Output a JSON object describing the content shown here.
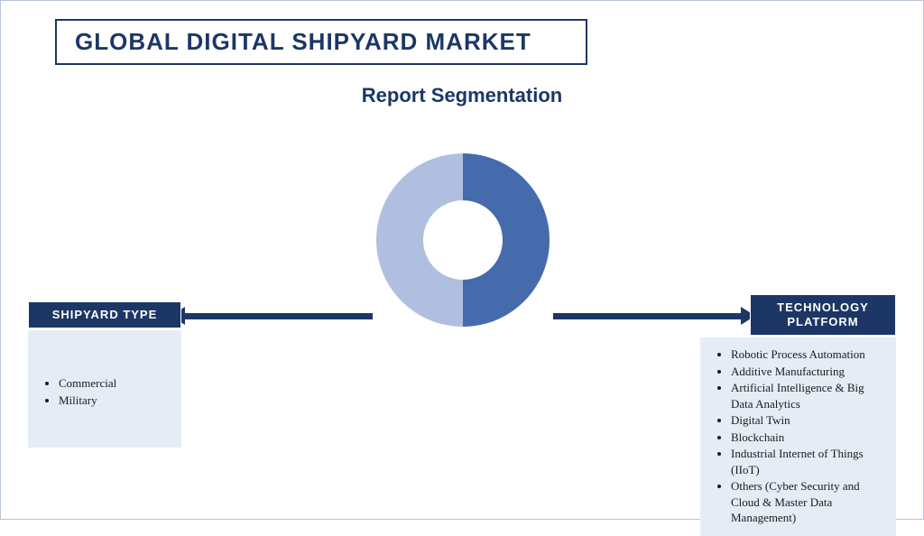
{
  "title": "GLOBAL DIGITAL SHIPYARD MARKET",
  "subtitle": "Report Segmentation",
  "colors": {
    "brand_dark": "#1c3766",
    "panel_bg": "#e6ecf5",
    "donut_left": "#b0bfe0",
    "donut_right": "#456bad",
    "page_bg": "#ffffff",
    "border": "#b8c5d6"
  },
  "donut": {
    "type": "pie",
    "inner_radius_ratio": 0.45,
    "slices": [
      {
        "value": 50,
        "color": "#b0bfe0"
      },
      {
        "value": 50,
        "color": "#456bad"
      }
    ]
  },
  "segments": {
    "left": {
      "header": "SHIPYARD TYPE",
      "items": [
        "Commercial",
        "Military"
      ]
    },
    "right": {
      "header": "TECHNOLOGY PLATFORM",
      "items": [
        "Robotic Process Automation",
        "Additive Manufacturing",
        "Artificial Intelligence & Big Data Analytics",
        "Digital Twin",
        "Blockchain",
        "Industrial Internet of Things (IIoT)",
        "Others (Cyber Security and Cloud & Master Data Management)"
      ]
    }
  }
}
